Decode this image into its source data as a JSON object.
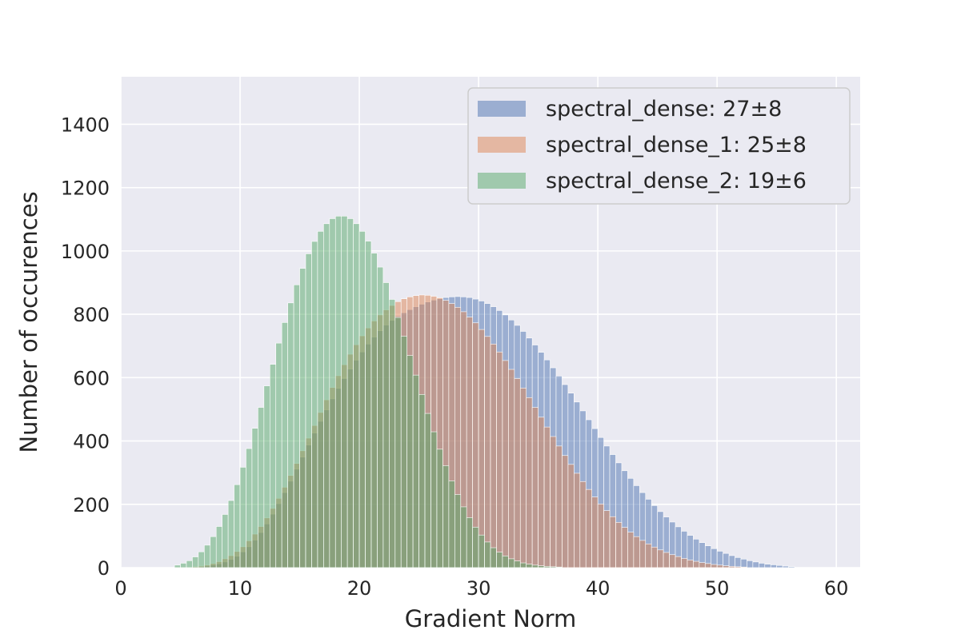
{
  "chart_data": {
    "type": "bar",
    "subtype": "overlapping-histogram",
    "xlabel": "Gradient Norm",
    "ylabel": "Number of occurences",
    "xlim": [
      0,
      62
    ],
    "ylim": [
      0,
      1550
    ],
    "xticks": [
      0,
      10,
      20,
      30,
      40,
      50,
      60
    ],
    "yticks": [
      0,
      200,
      400,
      600,
      800,
      1000,
      1200,
      1400
    ],
    "grid": true,
    "legend_position": "top-right",
    "bin_width": 0.5,
    "series": [
      {
        "name": "spectral_dense: 27±8",
        "color": "#4c72b0",
        "bins": [
          [
            6,
            2
          ],
          [
            6.5,
            3
          ],
          [
            7,
            5
          ],
          [
            7.5,
            8
          ],
          [
            8,
            12
          ],
          [
            8.5,
            18
          ],
          [
            9,
            26
          ],
          [
            9.5,
            36
          ],
          [
            10,
            50
          ],
          [
            10.5,
            66
          ],
          [
            11,
            87
          ],
          [
            11.5,
            111
          ],
          [
            12,
            138
          ],
          [
            12.5,
            169
          ],
          [
            13,
            202
          ],
          [
            13.5,
            237
          ],
          [
            14,
            273
          ],
          [
            14.5,
            311
          ],
          [
            15,
            349
          ],
          [
            15.5,
            387
          ],
          [
            16,
            425
          ],
          [
            16.5,
            462
          ],
          [
            17,
            498
          ],
          [
            17.5,
            533
          ],
          [
            18,
            566
          ],
          [
            18.5,
            597
          ],
          [
            19,
            627
          ],
          [
            19.5,
            655
          ],
          [
            20,
            681
          ],
          [
            20.5,
            706
          ],
          [
            21,
            728
          ],
          [
            21.5,
            748
          ],
          [
            22,
            766
          ],
          [
            22.5,
            781
          ],
          [
            23,
            794
          ],
          [
            23.5,
            805
          ],
          [
            24,
            815
          ],
          [
            24.5,
            824
          ],
          [
            25,
            832
          ],
          [
            25.5,
            839
          ],
          [
            26,
            845
          ],
          [
            26.5,
            849
          ],
          [
            27,
            853
          ],
          [
            27.5,
            855
          ],
          [
            28,
            856
          ],
          [
            28.5,
            855
          ],
          [
            29,
            853
          ],
          [
            29.5,
            848
          ],
          [
            30,
            842
          ],
          [
            30.5,
            834
          ],
          [
            31,
            824
          ],
          [
            31.5,
            812
          ],
          [
            32,
            798
          ],
          [
            32.5,
            782
          ],
          [
            33,
            765
          ],
          [
            33.5,
            746
          ],
          [
            34,
            725
          ],
          [
            34.5,
            703
          ],
          [
            35,
            680
          ],
          [
            35.5,
            656
          ],
          [
            36,
            631
          ],
          [
            36.5,
            605
          ],
          [
            37,
            578
          ],
          [
            37.5,
            551
          ],
          [
            38,
            523
          ],
          [
            38.5,
            495
          ],
          [
            39,
            467
          ],
          [
            39.5,
            439
          ],
          [
            40,
            411
          ],
          [
            40.5,
            384
          ],
          [
            41,
            357
          ],
          [
            41.5,
            331
          ],
          [
            42,
            306
          ],
          [
            42.5,
            282
          ],
          [
            43,
            259
          ],
          [
            43.5,
            237
          ],
          [
            44,
            216
          ],
          [
            44.5,
            196
          ],
          [
            45,
            177
          ],
          [
            45.5,
            160
          ],
          [
            46,
            144
          ],
          [
            46.5,
            129
          ],
          [
            47,
            115
          ],
          [
            47.5,
            102
          ],
          [
            48,
            90
          ],
          [
            48.5,
            79
          ],
          [
            49,
            69
          ],
          [
            49.5,
            60
          ],
          [
            50,
            52
          ],
          [
            50.5,
            45
          ],
          [
            51,
            38
          ],
          [
            51.5,
            32
          ],
          [
            52,
            27
          ],
          [
            52.5,
            22
          ],
          [
            53,
            18
          ],
          [
            53.5,
            14
          ],
          [
            54,
            11
          ],
          [
            54.5,
            9
          ],
          [
            55,
            7
          ],
          [
            55.5,
            5
          ],
          [
            56,
            3
          ]
        ]
      },
      {
        "name": "spectral_dense_1: 25±8",
        "color": "#dd8452",
        "bins": [
          [
            6,
            3
          ],
          [
            6.5,
            5
          ],
          [
            7,
            8
          ],
          [
            7.5,
            13
          ],
          [
            8,
            19
          ],
          [
            8.5,
            28
          ],
          [
            9,
            38
          ],
          [
            9.5,
            51
          ],
          [
            10,
            66
          ],
          [
            10.5,
            85
          ],
          [
            11,
            106
          ],
          [
            11.5,
            130
          ],
          [
            12,
            157
          ],
          [
            12.5,
            187
          ],
          [
            13,
            219
          ],
          [
            13.5,
            254
          ],
          [
            14,
            291
          ],
          [
            14.5,
            329
          ],
          [
            15,
            369
          ],
          [
            15.5,
            409
          ],
          [
            16,
            449
          ],
          [
            16.5,
            490
          ],
          [
            17,
            530
          ],
          [
            17.5,
            569
          ],
          [
            18,
            606
          ],
          [
            18.5,
            641
          ],
          [
            19,
            674
          ],
          [
            19.5,
            704
          ],
          [
            20,
            732
          ],
          [
            20.5,
            757
          ],
          [
            21,
            779
          ],
          [
            21.5,
            798
          ],
          [
            22,
            814
          ],
          [
            22.5,
            828
          ],
          [
            23,
            840
          ],
          [
            23.5,
            849
          ],
          [
            24,
            855
          ],
          [
            24.5,
            859
          ],
          [
            25,
            861
          ],
          [
            25.5,
            860
          ],
          [
            26,
            857
          ],
          [
            26.5,
            852
          ],
          [
            27,
            844
          ],
          [
            27.5,
            834
          ],
          [
            28,
            822
          ],
          [
            28.5,
            808
          ],
          [
            29,
            791
          ],
          [
            29.5,
            773
          ],
          [
            30,
            752
          ],
          [
            30.5,
            730
          ],
          [
            31,
            706
          ],
          [
            31.5,
            681
          ],
          [
            32,
            654
          ],
          [
            32.5,
            626
          ],
          [
            33,
            597
          ],
          [
            33.5,
            567
          ],
          [
            34,
            537
          ],
          [
            34.5,
            506
          ],
          [
            35,
            475
          ],
          [
            35.5,
            444
          ],
          [
            36,
            414
          ],
          [
            36.5,
            384
          ],
          [
            37,
            354
          ],
          [
            37.5,
            326
          ],
          [
            38,
            298
          ],
          [
            38.5,
            272
          ],
          [
            39,
            247
          ],
          [
            39.5,
            223
          ],
          [
            40,
            201
          ],
          [
            40.5,
            180
          ],
          [
            41,
            161
          ],
          [
            41.5,
            143
          ],
          [
            42,
            127
          ],
          [
            42.5,
            112
          ],
          [
            43,
            98
          ],
          [
            43.5,
            86
          ],
          [
            44,
            75
          ],
          [
            44.5,
            65
          ],
          [
            45,
            56
          ],
          [
            45.5,
            48
          ],
          [
            46,
            41
          ],
          [
            46.5,
            35
          ],
          [
            47,
            29
          ],
          [
            47.5,
            24
          ],
          [
            48,
            20
          ],
          [
            48.5,
            16
          ],
          [
            49,
            13
          ],
          [
            49.5,
            10
          ],
          [
            50,
            8
          ],
          [
            50.5,
            6
          ],
          [
            51,
            4
          ],
          [
            51.5,
            3
          ],
          [
            52,
            2
          ]
        ]
      },
      {
        "name": "spectral_dense_2: 19±6",
        "color": "#55a868",
        "bins": [
          [
            4.5,
            8
          ],
          [
            5,
            14
          ],
          [
            5.5,
            22
          ],
          [
            6,
            34
          ],
          [
            6.5,
            50
          ],
          [
            7,
            71
          ],
          [
            7.5,
            98
          ],
          [
            8,
            130
          ],
          [
            8.5,
            168
          ],
          [
            9,
            212
          ],
          [
            9.5,
            262
          ],
          [
            10,
            317
          ],
          [
            10.5,
            376
          ],
          [
            11,
            440
          ],
          [
            11.5,
            506
          ],
          [
            12,
            574
          ],
          [
            12.5,
            642
          ],
          [
            13,
            709
          ],
          [
            13.5,
            774
          ],
          [
            14,
            836
          ],
          [
            14.5,
            893
          ],
          [
            15,
            945
          ],
          [
            15.5,
            991
          ],
          [
            16,
            1030
          ],
          [
            16.5,
            1062
          ],
          [
            17,
            1086
          ],
          [
            17.5,
            1102
          ],
          [
            18,
            1110
          ],
          [
            18.5,
            1110
          ],
          [
            19,
            1102
          ],
          [
            19.5,
            1086
          ],
          [
            20,
            1062
          ],
          [
            20.5,
            1031
          ],
          [
            21,
            993
          ],
          [
            21.5,
            949
          ],
          [
            22,
            900
          ],
          [
            22.5,
            847
          ],
          [
            23,
            790
          ],
          [
            23.5,
            731
          ],
          [
            24,
            670
          ],
          [
            24.5,
            608
          ],
          [
            25,
            547
          ],
          [
            25.5,
            487
          ],
          [
            26,
            429
          ],
          [
            26.5,
            374
          ],
          [
            27,
            322
          ],
          [
            27.5,
            274
          ],
          [
            28,
            231
          ],
          [
            28.5,
            192
          ],
          [
            29,
            158
          ],
          [
            29.5,
            128
          ],
          [
            30,
            103
          ],
          [
            30.5,
            81
          ],
          [
            31,
            63
          ],
          [
            31.5,
            49
          ],
          [
            32,
            37
          ],
          [
            32.5,
            28
          ],
          [
            33,
            21
          ],
          [
            33.5,
            15
          ],
          [
            34,
            11
          ],
          [
            34.5,
            8
          ],
          [
            35,
            6
          ],
          [
            35.5,
            4
          ],
          [
            36,
            3
          ],
          [
            36.5,
            2
          ]
        ]
      }
    ],
    "legend": [
      "spectral_dense: 27±8",
      "spectral_dense_1: 25±8",
      "spectral_dense_2: 19±6"
    ]
  }
}
